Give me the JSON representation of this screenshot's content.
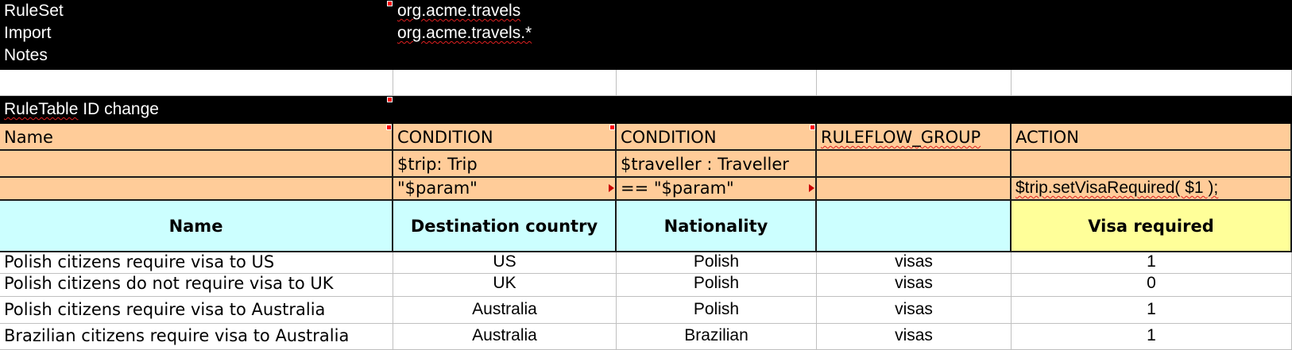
{
  "header": {
    "ruleset_label": "RuleSet",
    "ruleset_value": "org.acme.travels",
    "import_label": "Import",
    "import_value": "org.acme.travels.*",
    "notes_label": "Notes"
  },
  "ruletable_title": "RuleTable ID change",
  "type_row": [
    "Name",
    "CONDITION",
    "CONDITION",
    "RULEFLOW_GROUP",
    "ACTION"
  ],
  "object_row": [
    "",
    "$trip: Trip",
    "$traveller : Traveller",
    "",
    ""
  ],
  "constraint_row": [
    "",
    "\"$param\"",
    "== \"$param\"",
    "",
    "$trip.setVisaRequired( $1 );"
  ],
  "column_headers": [
    "Name",
    "Destination country",
    "Nationality",
    "",
    "Visa required"
  ],
  "rules": [
    [
      "Polish citizens require visa to US",
      "US",
      "Polish",
      "visas",
      "1"
    ],
    [
      "Polish citizens do not require visa to UK",
      "UK",
      "Polish",
      "visas",
      "0"
    ],
    [
      "Polish citizens require visa to Australia",
      "Australia",
      "Polish",
      "visas",
      "1"
    ],
    [
      "Brazilian citizens require visa to Australia",
      "Australia",
      "Brazilian",
      "visas",
      "1"
    ]
  ],
  "colors": {
    "header_black": "#000000",
    "table_orange": "#ffcc99",
    "label_cyan": "#ccffff",
    "action_yellow": "#ffff99",
    "comment_marker": "#ff0000"
  }
}
